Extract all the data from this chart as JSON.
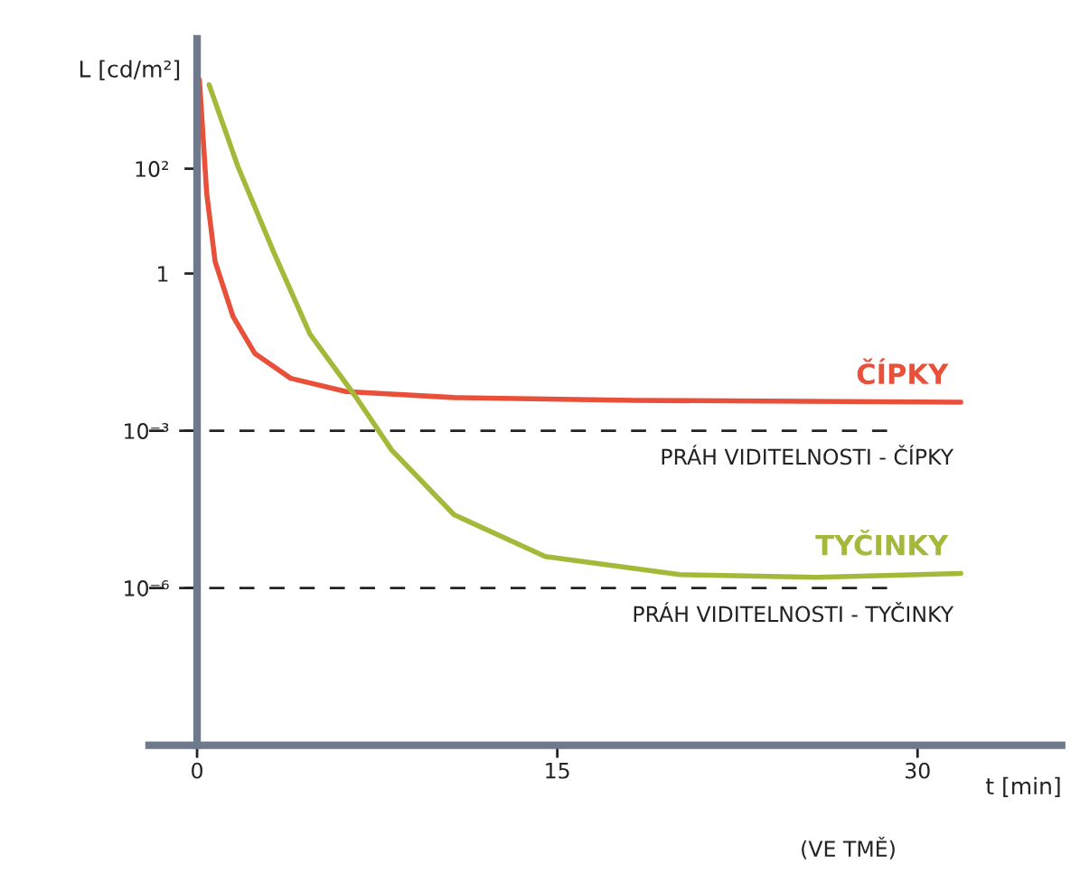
{
  "chart_data": {
    "type": "line",
    "log": "y",
    "xlabel": "t [min]",
    "ylabel": "L [cd/m²]",
    "xlim": [
      -2,
      36
    ],
    "ylim": [
      1e-09,
      30000
    ],
    "xticks": [
      0,
      15,
      30
    ],
    "yticks": [
      {
        "value": 100,
        "label": "10²"
      },
      {
        "value": 1,
        "label": "1"
      },
      {
        "value": 0.001,
        "label": "10⁻³"
      },
      {
        "value": 1e-06,
        "label": "10⁻⁶"
      }
    ],
    "grid": false,
    "legend": false,
    "marker": "none",
    "line_style": "solid",
    "series": [
      {
        "name": "ČÍPKY",
        "color": "#e8503a",
        "x": [
          0.1,
          0.4,
          0.75,
          1.5,
          2.4,
          3.9,
          6.2,
          10.7,
          18.2,
          31.8
        ],
        "values": [
          4900,
          34,
          1.7,
          0.15,
          0.03,
          0.01,
          0.0056,
          0.0043,
          0.0038,
          0.0035
        ]
      },
      {
        "name": "TYČINKY",
        "color": "#a5b83a",
        "x": [
          0.5,
          1.7,
          3.2,
          4.7,
          6.6,
          8.1,
          10.7,
          14.5,
          20.1,
          25.8,
          31.8
        ],
        "values": [
          4000,
          110,
          2.5,
          0.07,
          0.0045,
          0.00043,
          2.5e-05,
          4e-06,
          1.8e-06,
          1.6e-06,
          1.9e-06
        ]
      }
    ],
    "ref_lines": [
      {
        "axis": "y",
        "value": 0.001,
        "label": "PRÁH VIDITELNOSTI - ČÍPKY",
        "color": "#222222",
        "line_style": "dashed"
      },
      {
        "axis": "y",
        "value": 1e-06,
        "label": "PRÁH VIDITELNOSTI - TYČINKY",
        "color": "#222222",
        "line_style": "dashed"
      }
    ],
    "annotations": [
      "(VE TMĚ)"
    ]
  }
}
